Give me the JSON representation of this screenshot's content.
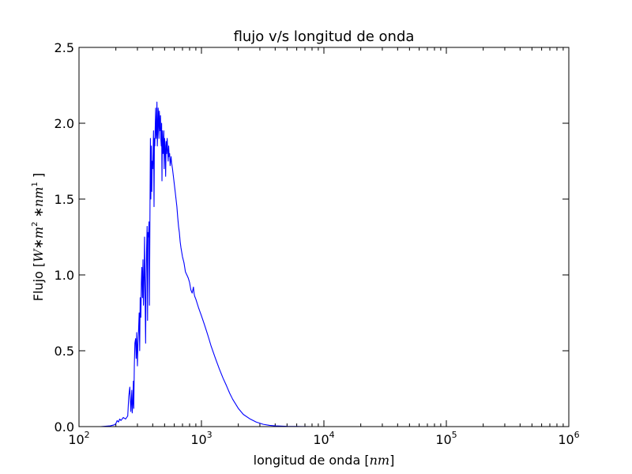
{
  "chart_data": {
    "type": "line",
    "title": "flujo v/s longitud de onda",
    "xlabel": "longitud de onda [nm]",
    "ylabel": "Flujo [W*m^2 *nm^1 ]",
    "xscale": "log",
    "xlim": [
      100,
      1000000
    ],
    "ylim": [
      0,
      2.5
    ],
    "grid": false,
    "x_ticks": [
      {
        "base": "10",
        "exp": "2",
        "value": 100
      },
      {
        "base": "10",
        "exp": "3",
        "value": 1000
      },
      {
        "base": "10",
        "exp": "4",
        "value": 10000
      },
      {
        "base": "10",
        "exp": "5",
        "value": 100000
      },
      {
        "base": "10",
        "exp": "6",
        "value": 1000000
      }
    ],
    "y_ticks": [
      "0.0",
      "0.5",
      "1.0",
      "1.5",
      "2.0",
      "2.5"
    ],
    "series": [
      {
        "color": "#0000ff",
        "x": [
          120,
          150,
          180,
          195,
          200,
          205,
          210,
          215,
          220,
          230,
          240,
          250,
          255,
          260,
          265,
          270,
          272,
          275,
          278,
          280,
          283,
          286,
          290,
          293,
          296,
          300,
          303,
          306,
          310,
          313,
          316,
          320,
          323,
          326,
          330,
          333,
          336,
          340,
          343,
          346,
          350,
          353,
          356,
          360,
          363,
          366,
          370,
          373,
          376,
          380,
          383,
          386,
          390,
          393,
          396,
          400,
          403,
          406,
          410,
          413,
          416,
          420,
          423,
          426,
          430,
          433,
          436,
          440,
          443,
          446,
          450,
          453,
          456,
          460,
          463,
          466,
          470,
          473,
          476,
          480,
          483,
          486,
          490,
          493,
          496,
          500,
          505,
          510,
          515,
          520,
          525,
          530,
          535,
          540,
          545,
          550,
          555,
          560,
          565,
          570,
          575,
          580,
          590,
          600,
          610,
          620,
          630,
          640,
          650,
          660,
          670,
          680,
          690,
          700,
          720,
          740,
          760,
          780,
          800,
          820,
          840,
          860,
          870,
          880,
          900,
          950,
          1000,
          1050,
          1100,
          1150,
          1200,
          1300,
          1400,
          1500,
          1600,
          1700,
          1800,
          2000,
          2200,
          2500,
          2800,
          3200,
          3600,
          4000,
          5000,
          6000,
          8000,
          10000,
          20000,
          50000,
          100000,
          300000,
          1000000
        ],
        "y": [
          0.0,
          0.0,
          0.005,
          0.012,
          0.02,
          0.04,
          0.03,
          0.05,
          0.04,
          0.06,
          0.05,
          0.07,
          0.2,
          0.26,
          0.1,
          0.24,
          0.09,
          0.15,
          0.3,
          0.12,
          0.4,
          0.55,
          0.58,
          0.45,
          0.62,
          0.4,
          0.55,
          0.62,
          0.75,
          0.5,
          0.85,
          0.72,
          0.95,
          1.05,
          0.85,
          1.1,
          0.8,
          1.0,
          1.25,
          0.9,
          0.55,
          0.95,
          1.15,
          1.32,
          0.7,
          1.28,
          1.25,
          1.35,
          0.8,
          1.45,
          1.9,
          1.5,
          1.85,
          1.55,
          1.75,
          1.7,
          1.8,
          1.95,
          1.45,
          1.9,
          1.85,
          2.0,
          2.1,
          1.9,
          1.95,
          2.14,
          1.85,
          1.95,
          2.1,
          2.05,
          1.9,
          2.08,
          2.0,
          1.95,
          2.05,
          1.9,
          1.85,
          2.0,
          1.62,
          1.95,
          1.9,
          1.8,
          1.85,
          1.95,
          1.7,
          1.9,
          1.85,
          1.65,
          1.88,
          1.8,
          1.9,
          1.82,
          1.75,
          1.85,
          1.78,
          1.8,
          1.72,
          1.75,
          1.78,
          1.74,
          1.72,
          1.7,
          1.65,
          1.6,
          1.55,
          1.5,
          1.45,
          1.38,
          1.32,
          1.28,
          1.22,
          1.18,
          1.15,
          1.12,
          1.08,
          1.02,
          1.0,
          0.98,
          0.95,
          0.9,
          0.88,
          0.92,
          0.88,
          0.86,
          0.84,
          0.78,
          0.73,
          0.68,
          0.63,
          0.58,
          0.53,
          0.45,
          0.38,
          0.32,
          0.27,
          0.22,
          0.18,
          0.12,
          0.08,
          0.05,
          0.03,
          0.015,
          0.008,
          0.005,
          0.002,
          0.001,
          0.0,
          0.0,
          0.0,
          0.0,
          0.0,
          0.0,
          0.0
        ]
      }
    ]
  }
}
